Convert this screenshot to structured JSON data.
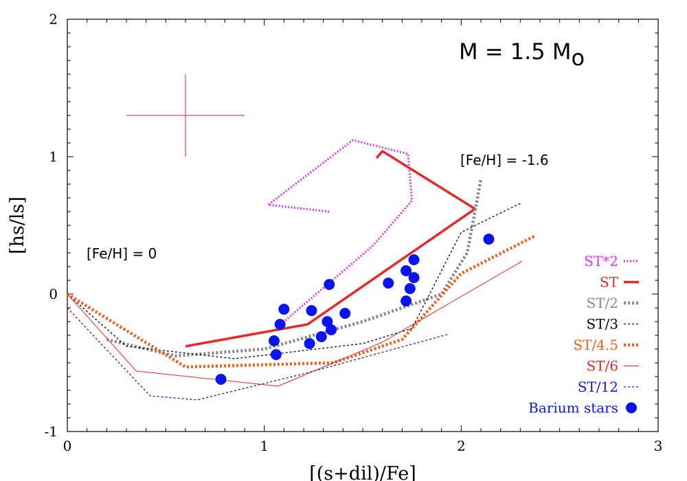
{
  "chart_data": {
    "type": "line",
    "xlabel": "[(s+dil)/Fe]",
    "ylabel": "[hs/ls]",
    "xlim": [
      0,
      3
    ],
    "ylim": [
      -1,
      2
    ],
    "x_ticks": [
      "0",
      "1",
      "2",
      "3"
    ],
    "y_ticks": [
      "-1",
      "0",
      "1",
      "2"
    ],
    "grid": false,
    "legend_position": "bottom-right",
    "annotations": {
      "mass": {
        "text": "M = 1.5 M",
        "subscript": "o"
      },
      "feh_low": "[Fe/H] = -1.6",
      "feh_zero": "[Fe/H] = 0"
    },
    "error_bar": {
      "x": 0.6,
      "y": 1.3,
      "xerr": 0.3,
      "yerr": 0.3,
      "color": "#e8262b"
    },
    "series": [
      {
        "name": "ST*2",
        "color": "#e033e0",
        "style": "dotted",
        "x": [
          1.33,
          1.02,
          1.45,
          1.73,
          1.75,
          1.55,
          1.1
        ],
        "y": [
          0.6,
          0.65,
          1.12,
          1.02,
          0.68,
          0.35,
          -0.2
        ]
      },
      {
        "name": "ST",
        "color": "#e8262b",
        "style": "solid-thick",
        "x": [
          0.6,
          1.22,
          2.07,
          1.6,
          1.57
        ],
        "y": [
          -0.38,
          -0.22,
          0.62,
          1.04,
          0.99
        ]
      },
      {
        "name": "ST/2",
        "color": "#888888",
        "style": "dotted-thick",
        "x": [
          0.2,
          0.55,
          1.0,
          1.5,
          1.9,
          2.03,
          2.07,
          2.1
        ],
        "y": [
          -0.33,
          -0.45,
          -0.4,
          -0.2,
          0.0,
          0.3,
          0.6,
          0.84
        ]
      },
      {
        "name": "ST/3",
        "color": "#000000",
        "style": "dashed",
        "x": [
          0.0,
          0.3,
          0.85,
          1.5,
          1.75,
          2.0,
          2.3
        ],
        "y": [
          0.0,
          -0.38,
          -0.47,
          -0.36,
          -0.25,
          0.45,
          0.66
        ]
      },
      {
        "name": "ST/4.5",
        "color": "#ee5f1c",
        "style": "dotted-thick",
        "x": [
          0.0,
          0.6,
          1.35,
          1.7,
          2.0,
          2.37
        ],
        "y": [
          0.0,
          -0.53,
          -0.5,
          -0.33,
          0.15,
          0.42
        ]
      },
      {
        "name": "ST/6",
        "color": "#e8262b",
        "style": "solid-thin",
        "x": [
          0.0,
          0.35,
          1.07,
          1.6,
          2.31
        ],
        "y": [
          0.0,
          -0.56,
          -0.67,
          -0.35,
          0.24
        ]
      },
      {
        "name": "ST/12",
        "color": "#1515e6",
        "style": "dashed",
        "x": [
          0.0,
          0.42,
          0.66,
          1.2,
          1.94
        ],
        "y": [
          -0.1,
          -0.74,
          -0.77,
          -0.58,
          -0.29
        ]
      }
    ],
    "scatter": {
      "name": "Barium stars",
      "color": "#0a14f0",
      "points": [
        [
          0.78,
          -0.62
        ],
        [
          1.06,
          -0.44
        ],
        [
          1.05,
          -0.34
        ],
        [
          1.08,
          -0.22
        ],
        [
          1.1,
          -0.11
        ],
        [
          1.23,
          -0.36
        ],
        [
          1.24,
          -0.12
        ],
        [
          1.29,
          -0.31
        ],
        [
          1.32,
          -0.2
        ],
        [
          1.34,
          -0.26
        ],
        [
          1.33,
          0.07
        ],
        [
          1.41,
          -0.14
        ],
        [
          1.63,
          0.08
        ],
        [
          1.72,
          0.17
        ],
        [
          1.72,
          -0.05
        ],
        [
          1.74,
          0.04
        ],
        [
          1.76,
          0.25
        ],
        [
          1.76,
          0.12
        ],
        [
          2.14,
          0.4
        ]
      ]
    }
  }
}
